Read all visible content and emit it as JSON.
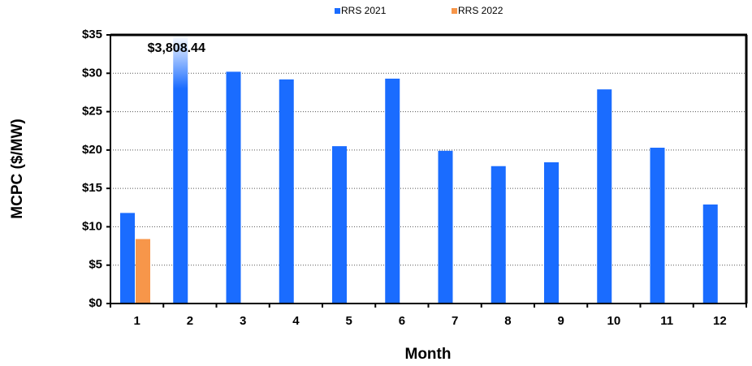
{
  "chart_data": {
    "type": "bar",
    "x_label": "Month",
    "y_label": "MCPC ($/MW)",
    "categories": [
      "1",
      "2",
      "3",
      "4",
      "5",
      "6",
      "7",
      "8",
      "9",
      "10",
      "11",
      "12"
    ],
    "series": [
      {
        "name": "RRS 2021",
        "color": "#1a6cff",
        "values": [
          11.8,
          3808.44,
          30.2,
          29.2,
          20.5,
          29.3,
          19.9,
          17.9,
          18.4,
          27.9,
          20.3,
          12.9
        ],
        "value_labels": [
          null,
          "$3,808.44",
          null,
          null,
          null,
          null,
          null,
          null,
          null,
          null,
          null,
          null
        ]
      },
      {
        "name": "RRS 2022",
        "color": "#f7964a",
        "values": [
          8.4,
          null,
          null,
          null,
          null,
          null,
          null,
          null,
          null,
          null,
          null,
          null
        ]
      }
    ],
    "ylim": [
      0,
      35
    ],
    "yticks": [
      {
        "value": 0,
        "label": "$0"
      },
      {
        "value": 5,
        "label": "$5"
      },
      {
        "value": 10,
        "label": "$10"
      },
      {
        "value": 15,
        "label": "$15"
      },
      {
        "value": 20,
        "label": "$20"
      },
      {
        "value": 25,
        "label": "$25"
      },
      {
        "value": 30,
        "label": "$30"
      },
      {
        "value": 35,
        "label": "$35"
      }
    ],
    "grid": true,
    "legend": "top"
  }
}
